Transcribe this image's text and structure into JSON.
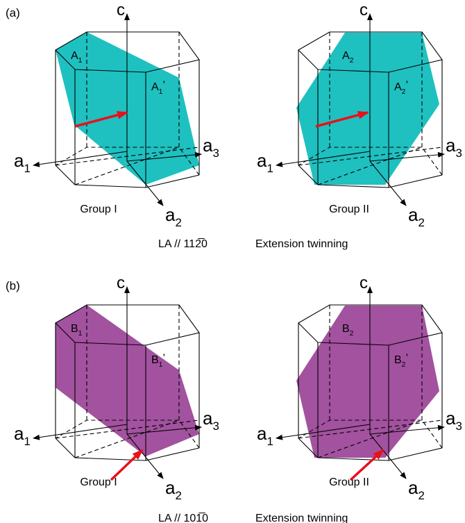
{
  "panels": [
    {
      "label": "(a)",
      "diagrams": [
        {
          "c": "c",
          "plane_label": {
            "main": "A",
            "sub": "1"
          },
          "plane_label_2": {
            "main": "A",
            "sub": "1",
            "prime": "’"
          },
          "a1": {
            "main": "a",
            "sub": "1"
          },
          "a2": {
            "main": "a",
            "sub": "2"
          },
          "a3": {
            "main": "a",
            "sub": "3"
          },
          "group": "Group I"
        },
        {
          "c": "c",
          "plane_label": {
            "main": "A",
            "sub": "2"
          },
          "plane_label_2": {
            "main": "A",
            "sub": "2",
            "prime": "’"
          },
          "a1": {
            "main": "a",
            "sub": "1"
          },
          "a2": {
            "main": "a",
            "sub": "2"
          },
          "a3": {
            "main": "a",
            "sub": "3"
          },
          "group": "Group II"
        }
      ],
      "caption": {
        "direction": "LA // 112̅0",
        "mode": "Extension twinning"
      }
    },
    {
      "label": "(b)",
      "diagrams": [
        {
          "c": "c",
          "plane_label": {
            "main": "B",
            "sub": "1"
          },
          "plane_label_2": {
            "main": "B",
            "sub": "1",
            "prime": "’"
          },
          "a1": {
            "main": "a",
            "sub": "1"
          },
          "a2": {
            "main": "a",
            "sub": "2"
          },
          "a3": {
            "main": "a",
            "sub": "3"
          },
          "group": "Group I"
        },
        {
          "c": "c",
          "plane_label": {
            "main": "B",
            "sub": "2"
          },
          "plane_label_2": {
            "main": "B",
            "sub": "2",
            "prime": "’"
          },
          "a1": {
            "main": "a",
            "sub": "1"
          },
          "a2": {
            "main": "a",
            "sub": "2"
          },
          "a3": {
            "main": "a",
            "sub": "3"
          },
          "group": "Group II"
        }
      ],
      "caption": {
        "direction": "LA // 101̅0",
        "mode": "Extension twinning"
      }
    }
  ]
}
